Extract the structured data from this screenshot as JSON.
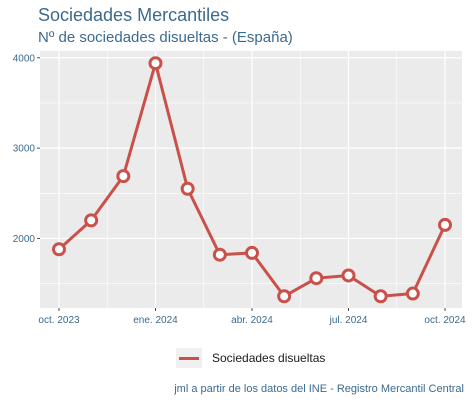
{
  "chart_data": {
    "type": "line",
    "title": "Sociedades Mercantiles",
    "subtitle": "Nº de sociedades disueltas - (España)",
    "xlabel": "",
    "ylabel": "",
    "caption": "jml a partir de los datos del INE - Registro Mercantil Central",
    "x": [
      "2023-10",
      "2023-11",
      "2023-12",
      "2024-01",
      "2024-02",
      "2024-03",
      "2024-04",
      "2024-05",
      "2024-06",
      "2024-07",
      "2024-08",
      "2024-09",
      "2024-10"
    ],
    "series": [
      {
        "name": "Sociedades disueltas",
        "values": [
          1880,
          2200,
          2690,
          3940,
          2550,
          1820,
          1840,
          1360,
          1560,
          1590,
          1360,
          1390,
          2150
        ]
      }
    ],
    "x_ticks": [
      {
        "x": "2023-10",
        "label": "oct. 2023"
      },
      {
        "x": "2024-01",
        "label": "ene. 2024"
      },
      {
        "x": "2024-04",
        "label": "abr. 2024"
      },
      {
        "x": "2024-07",
        "label": "jul. 2024"
      },
      {
        "x": "2024-10",
        "label": "oct. 2024"
      }
    ],
    "y_ticks": [
      2000,
      3000,
      4000
    ],
    "ylim": [
      1230,
      4075
    ],
    "grid": true,
    "legend_position": "bottom",
    "colors": {
      "line": "#c9514a",
      "marker_fill": "#ffffff",
      "panel_background": "#ebebeb",
      "grid": "#ffffff",
      "text": "#3b6a8f"
    }
  }
}
